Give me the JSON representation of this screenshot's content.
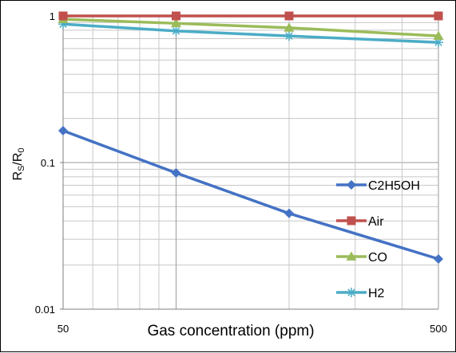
{
  "chart_data": {
    "type": "line",
    "xlabel": "Gas concentration (ppm)",
    "ylabel": "RS/R0",
    "ylabel_main": "R",
    "ylabel_sub1": "S",
    "ylabel_mid": "/R",
    "ylabel_sub2": "0",
    "x_scale": "log",
    "y_scale": "log",
    "xlim": [
      50,
      500
    ],
    "ylim": [
      0.01,
      1
    ],
    "x_ticks": [
      {
        "value": 50,
        "label": "50"
      },
      {
        "value": 500,
        "label": "500"
      }
    ],
    "y_ticks": [
      {
        "value": 1,
        "label": "1"
      },
      {
        "value": 0.1,
        "label": "0.1"
      },
      {
        "value": 0.01,
        "label": "0.01"
      }
    ],
    "grid": true,
    "legend_position": "right",
    "x": [
      50,
      100,
      200,
      500
    ],
    "series": [
      {
        "name": "C2H5OH",
        "color": "#4472c4",
        "marker": "diamond",
        "values": [
          0.165,
          0.085,
          0.045,
          0.022
        ]
      },
      {
        "name": "Air",
        "color": "#c0504d",
        "marker": "square",
        "values": [
          1.0,
          1.0,
          1.0,
          1.0
        ]
      },
      {
        "name": "CO",
        "color": "#9bbb59",
        "marker": "triangle",
        "values": [
          0.95,
          0.89,
          0.83,
          0.73
        ]
      },
      {
        "name": "H2",
        "color": "#4bacc6",
        "marker": "asterisk",
        "values": [
          0.88,
          0.79,
          0.73,
          0.66
        ]
      }
    ]
  }
}
